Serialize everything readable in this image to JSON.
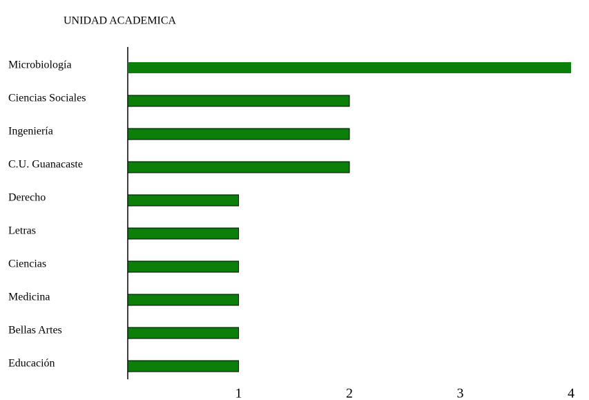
{
  "chart_data": {
    "type": "bar",
    "orientation": "horizontal",
    "title": "UNIDAD ACADEMICA",
    "categories": [
      "Microbiología",
      "Ciencias Sociales",
      "Ingeniería",
      "C.U. Guanacaste",
      "Derecho",
      "Letras",
      "Ciencias",
      "Medicina",
      "Bellas Artes",
      "Educación"
    ],
    "values": [
      4,
      2,
      2,
      2,
      1,
      1,
      1,
      1,
      1,
      1
    ],
    "color": "#0a7f0a",
    "xlim": [
      0,
      4
    ],
    "xticks": [
      1,
      2,
      3,
      4
    ]
  }
}
